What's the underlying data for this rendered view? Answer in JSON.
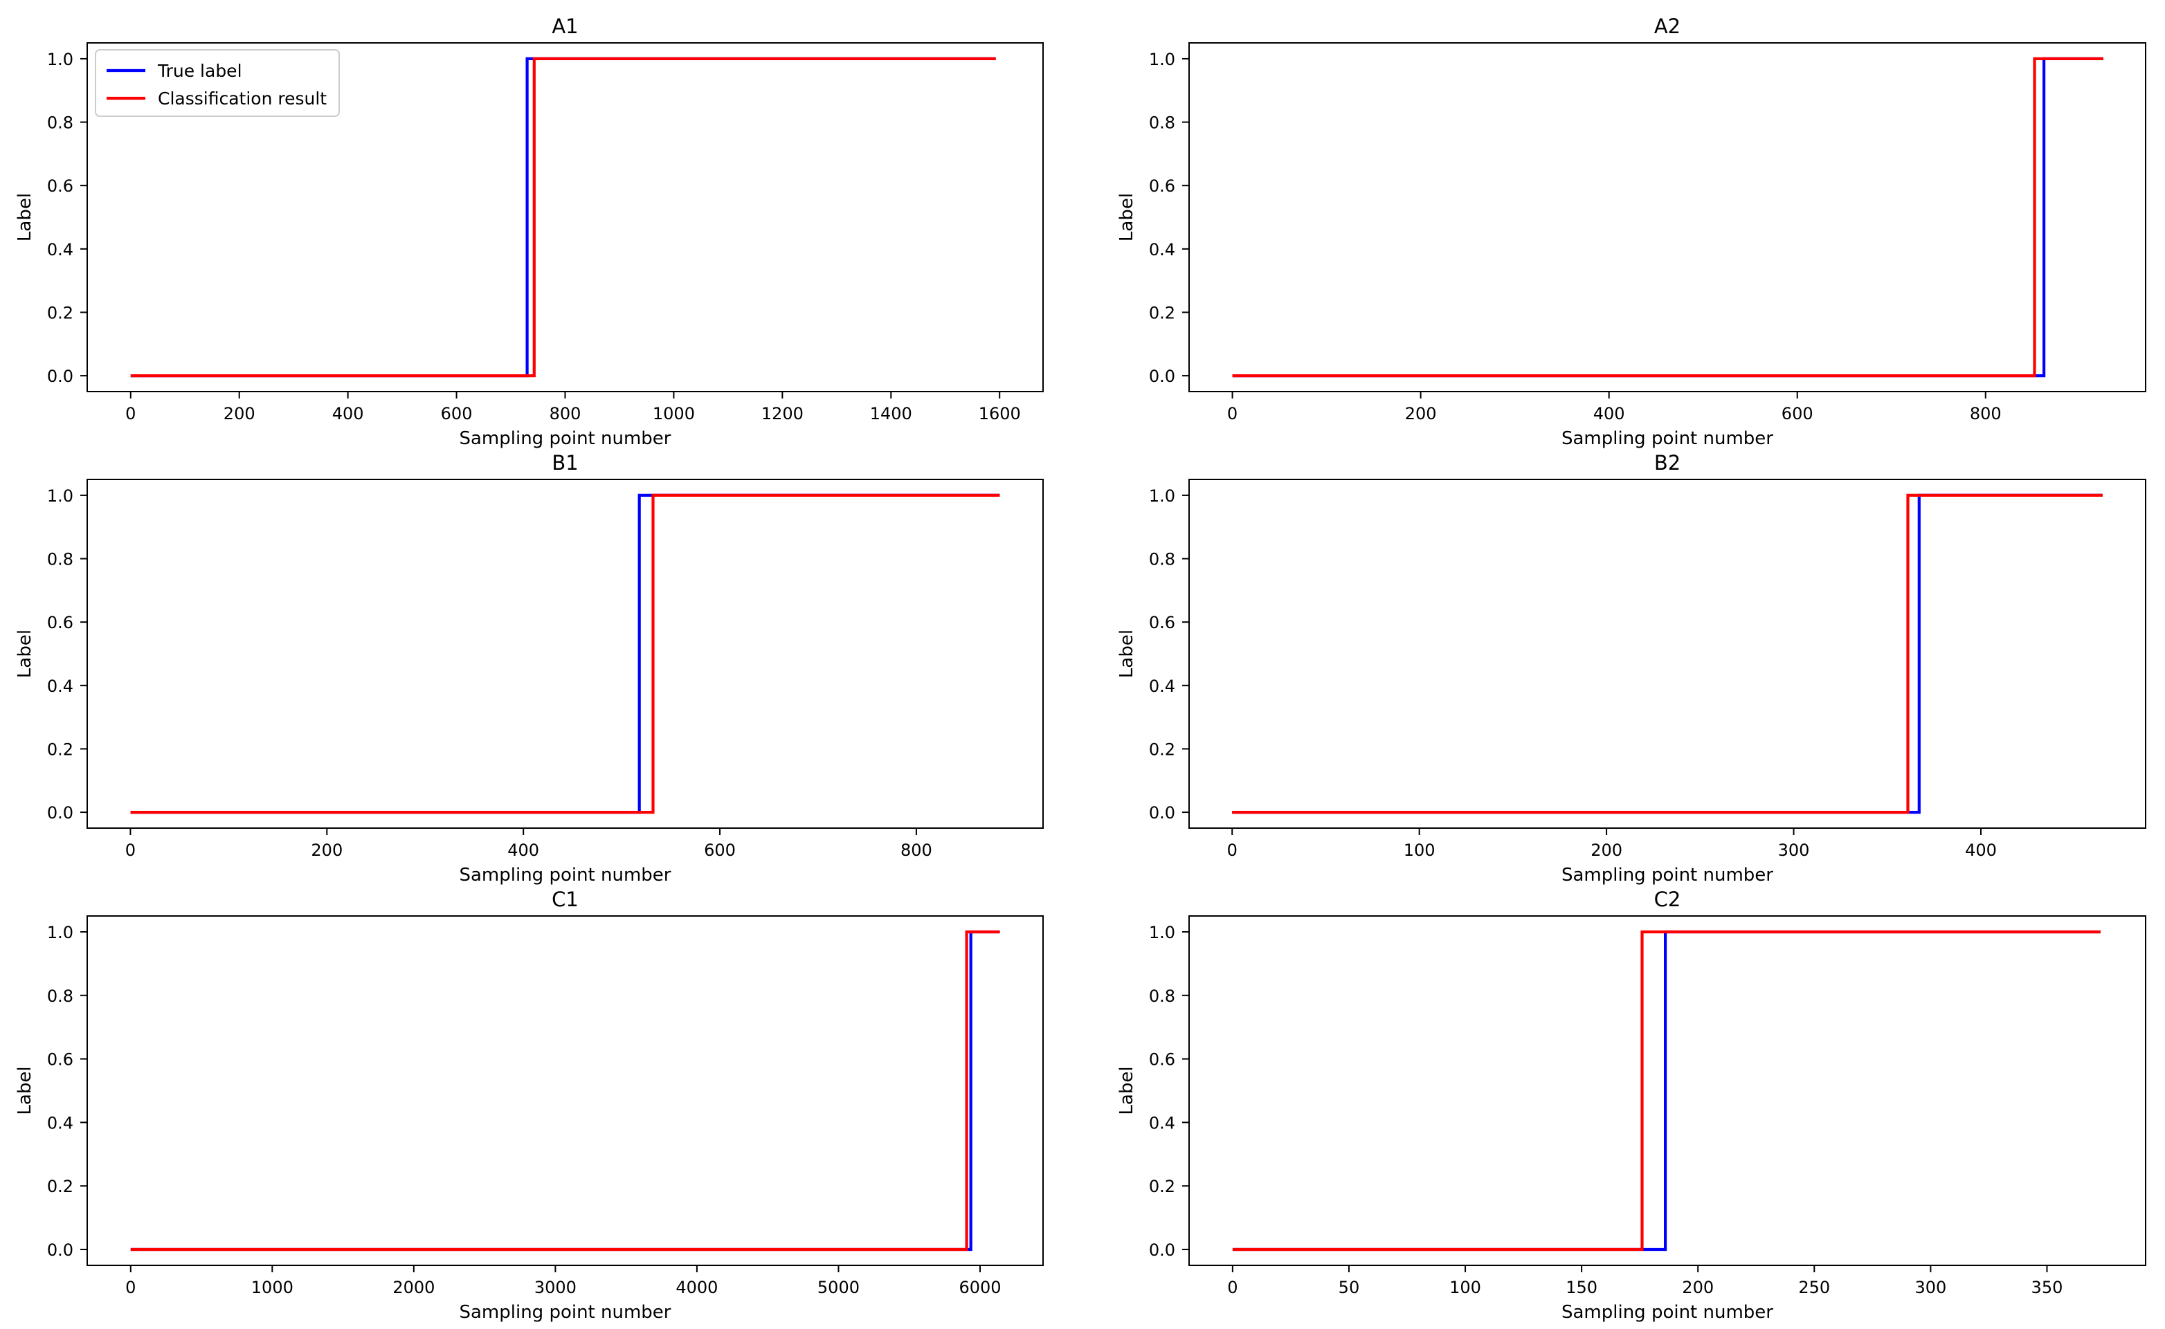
{
  "chart_data": [
    {
      "type": "line",
      "title": "A1",
      "xlabel": "Sampling point number",
      "ylabel": "Label",
      "xlim": [
        -80,
        1680
      ],
      "ylim": [
        -0.05,
        1.05
      ],
      "xticks": [
        0,
        200,
        400,
        600,
        800,
        1000,
        1200,
        1400,
        1600
      ],
      "yticks": [
        0.0,
        0.2,
        0.4,
        0.6,
        0.8,
        1.0
      ],
      "legend": "top-left",
      "series": [
        {
          "name": "True label",
          "color": "#0000ff",
          "x": [
            0,
            730,
            730,
            1593
          ],
          "y": [
            0,
            0,
            1,
            1
          ]
        },
        {
          "name": "Classification result",
          "color": "#ff0000",
          "x": [
            0,
            743,
            743,
            1593
          ],
          "y": [
            0,
            0,
            1,
            1
          ]
        }
      ]
    },
    {
      "type": "line",
      "title": "A2",
      "xlabel": "Sampling point number",
      "ylabel": "Label",
      "xlim": [
        -46,
        970
      ],
      "ylim": [
        -0.05,
        1.05
      ],
      "xticks": [
        0,
        200,
        400,
        600,
        800
      ],
      "yticks": [
        0.0,
        0.2,
        0.4,
        0.6,
        0.8,
        1.0
      ],
      "series": [
        {
          "name": "True label",
          "color": "#0000ff",
          "x": [
            0,
            862,
            862,
            925
          ],
          "y": [
            0,
            0,
            1,
            1
          ]
        },
        {
          "name": "Classification result",
          "color": "#ff0000",
          "x": [
            0,
            852,
            852,
            925
          ],
          "y": [
            0,
            0,
            1,
            1
          ]
        }
      ]
    },
    {
      "type": "line",
      "title": "B1",
      "xlabel": "Sampling point number",
      "ylabel": "Label",
      "xlim": [
        -44,
        929
      ],
      "ylim": [
        -0.05,
        1.05
      ],
      "xticks": [
        0,
        200,
        400,
        600,
        800
      ],
      "yticks": [
        0.0,
        0.2,
        0.4,
        0.6,
        0.8,
        1.0
      ],
      "series": [
        {
          "name": "True label",
          "color": "#0000ff",
          "x": [
            0,
            518,
            518,
            885
          ],
          "y": [
            0,
            0,
            1,
            1
          ]
        },
        {
          "name": "Classification result",
          "color": "#ff0000",
          "x": [
            0,
            532,
            532,
            885
          ],
          "y": [
            0,
            0,
            1,
            1
          ]
        }
      ]
    },
    {
      "type": "line",
      "title": "B2",
      "xlabel": "Sampling point number",
      "ylabel": "Label",
      "xlim": [
        -23,
        488
      ],
      "ylim": [
        -0.05,
        1.05
      ],
      "xticks": [
        0,
        100,
        200,
        300,
        400
      ],
      "yticks": [
        0.0,
        0.2,
        0.4,
        0.6,
        0.8,
        1.0
      ],
      "series": [
        {
          "name": "True label",
          "color": "#0000ff",
          "x": [
            0,
            367,
            367,
            465
          ],
          "y": [
            0,
            0,
            1,
            1
          ]
        },
        {
          "name": "Classification result",
          "color": "#ff0000",
          "x": [
            0,
            361,
            361,
            465
          ],
          "y": [
            0,
            0,
            1,
            1
          ]
        }
      ]
    },
    {
      "type": "line",
      "title": "C1",
      "xlabel": "Sampling point number",
      "ylabel": "Label",
      "xlim": [
        -307,
        6445
      ],
      "ylim": [
        -0.05,
        1.05
      ],
      "xticks": [
        0,
        1000,
        2000,
        3000,
        4000,
        5000,
        6000
      ],
      "yticks": [
        0.0,
        0.2,
        0.4,
        0.6,
        0.8,
        1.0
      ],
      "series": [
        {
          "name": "True label",
          "color": "#0000ff",
          "x": [
            0,
            5935,
            5935,
            6140
          ],
          "y": [
            0,
            0,
            1,
            1
          ]
        },
        {
          "name": "Classification result",
          "color": "#ff0000",
          "x": [
            0,
            5905,
            5905,
            6140
          ],
          "y": [
            0,
            0,
            1,
            1
          ]
        }
      ]
    },
    {
      "type": "line",
      "title": "C2",
      "xlabel": "Sampling point number",
      "ylabel": "Label",
      "xlim": [
        -18.7,
        392.4
      ],
      "ylim": [
        -0.05,
        1.05
      ],
      "xticks": [
        0,
        50,
        100,
        150,
        200,
        250,
        300,
        350
      ],
      "yticks": [
        0.0,
        0.2,
        0.4,
        0.6,
        0.8,
        1.0
      ],
      "series": [
        {
          "name": "True label",
          "color": "#0000ff",
          "x": [
            0,
            186,
            186,
            373
          ],
          "y": [
            0,
            0,
            1,
            1
          ]
        },
        {
          "name": "Classification result",
          "color": "#ff0000",
          "x": [
            0,
            176,
            176,
            373
          ],
          "y": [
            0,
            0,
            1,
            1
          ]
        }
      ]
    }
  ]
}
